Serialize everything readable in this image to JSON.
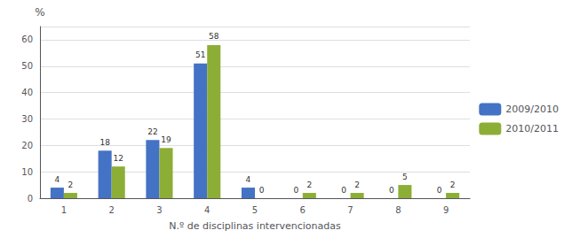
{
  "chart_data": {
    "type": "bar",
    "categories": [
      "1",
      "2",
      "3",
      "4",
      "5",
      "6",
      "7",
      "8",
      "9"
    ],
    "series": [
      {
        "name": "2009/2010",
        "color": "#4472C4",
        "values": [
          4,
          18,
          22,
          51,
          4,
          0,
          0,
          0,
          0
        ]
      },
      {
        "name": "2010/2011",
        "color": "#8DAE36",
        "values": [
          2,
          12,
          19,
          58,
          0,
          2,
          2,
          5,
          2
        ]
      }
    ],
    "xlabel": "N.º de disciplinas intervencionadas",
    "ylabel": "%",
    "ylim": [
      0,
      65
    ],
    "yticks": [
      0,
      10,
      20,
      30,
      40,
      50,
      60
    ],
    "grid": true,
    "legend": "right",
    "data_labels": true
  }
}
